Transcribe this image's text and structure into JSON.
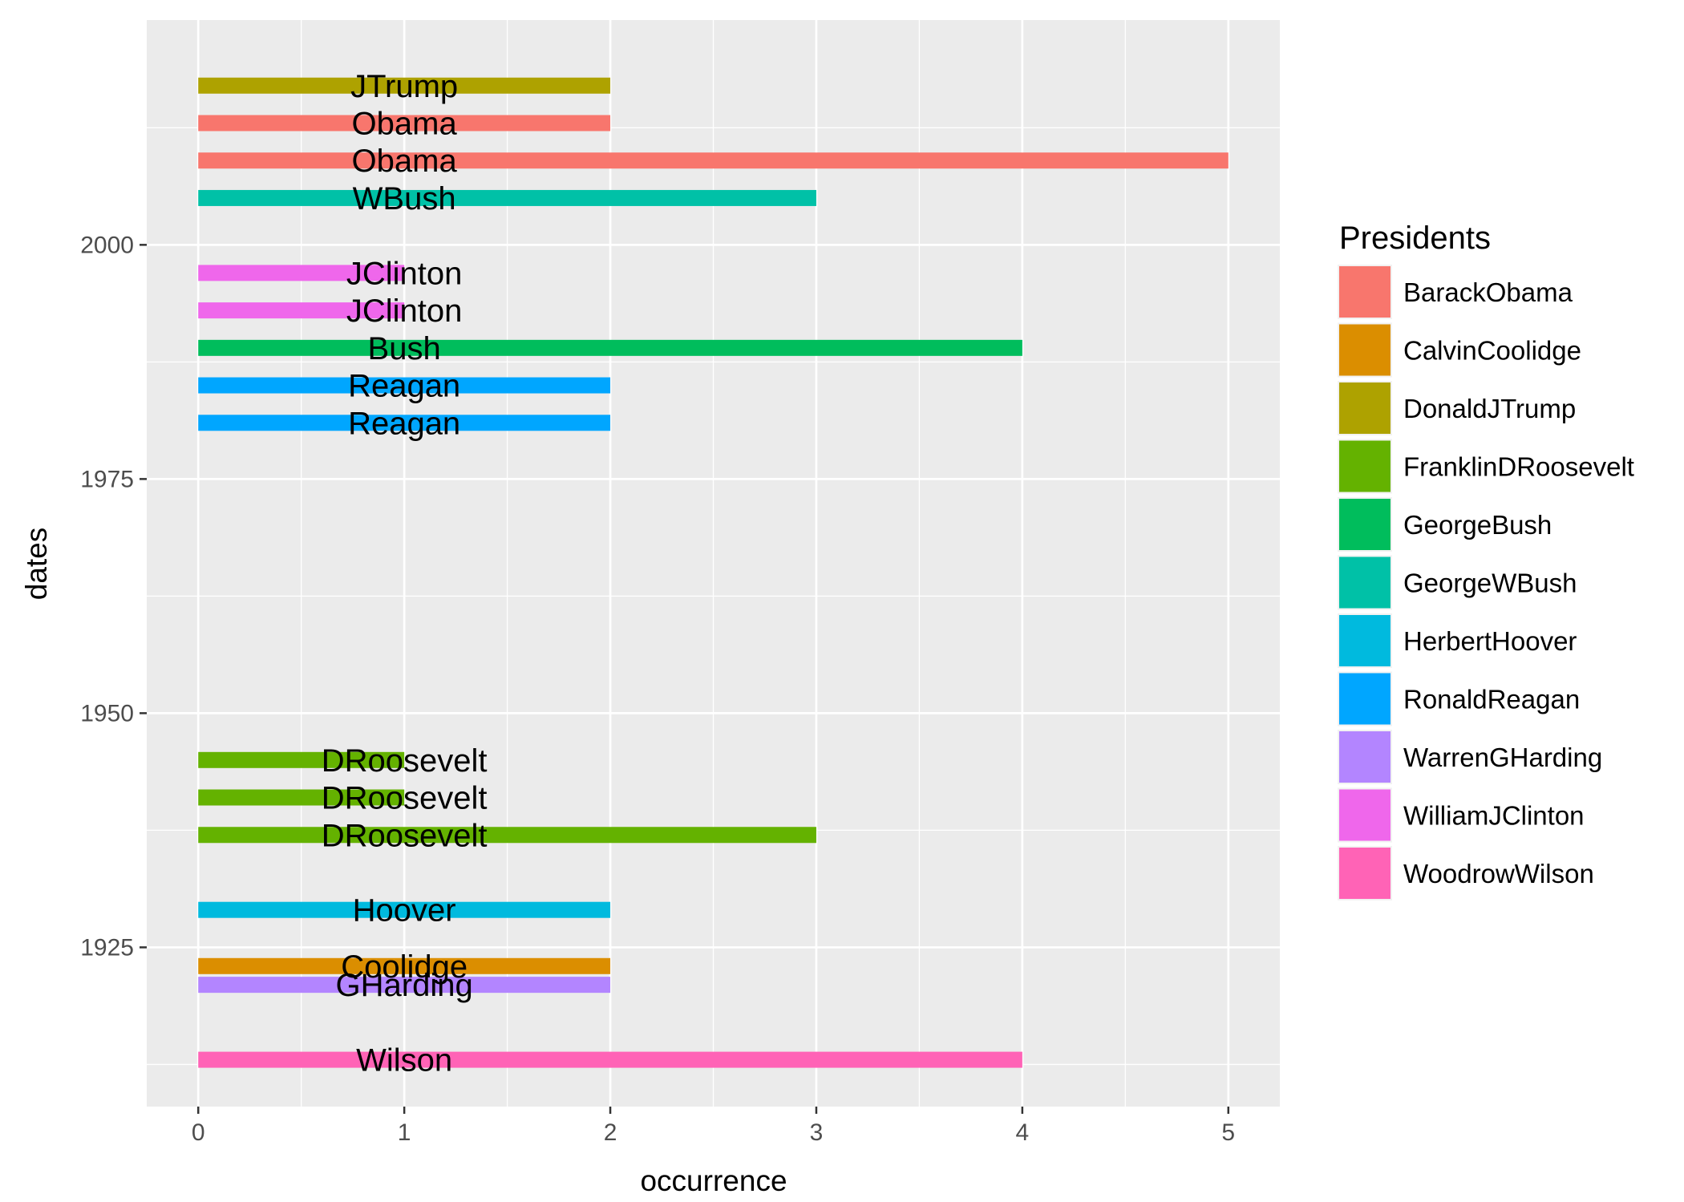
{
  "chart_data": {
    "type": "bar",
    "orientation": "horizontal",
    "xlabel": "occurrence",
    "ylabel": "dates",
    "xlim": [
      -0.25,
      5.25
    ],
    "ylim": [
      1908,
      2024
    ],
    "x_ticks": [
      0,
      1,
      2,
      3,
      4,
      5
    ],
    "y_ticks": [
      1925,
      1950,
      1975,
      2000
    ],
    "grid": true,
    "legend": {
      "title": "Presidents",
      "placement": "right",
      "entries": [
        {
          "name": "BarackObama",
          "color": "#F8766D"
        },
        {
          "name": "CalvinCoolidge",
          "color": "#DB8E00"
        },
        {
          "name": "DonaldJTrump",
          "color": "#AEA200"
        },
        {
          "name": "FranklinDRoosevelt",
          "color": "#64B200"
        },
        {
          "name": "GeorgeBush",
          "color": "#00BD5C"
        },
        {
          "name": "GeorgeWBush",
          "color": "#00C1A7"
        },
        {
          "name": "HerbertHoover",
          "color": "#00BADE"
        },
        {
          "name": "RonaldReagan",
          "color": "#00A6FF"
        },
        {
          "name": "WarrenGHarding",
          "color": "#B385FF"
        },
        {
          "name": "WilliamJClinton",
          "color": "#EF67EB"
        },
        {
          "name": "WoodrowWilson",
          "color": "#FF63B6"
        }
      ]
    },
    "bars": [
      {
        "date": 2017,
        "value": 2,
        "president": "DonaldJTrump",
        "label": "JTrump"
      },
      {
        "date": 2013,
        "value": 2,
        "president": "BarackObama",
        "label": "Obama"
      },
      {
        "date": 2009,
        "value": 5,
        "president": "BarackObama",
        "label": "Obama"
      },
      {
        "date": 2005,
        "value": 3,
        "president": "GeorgeWBush",
        "label": "WBush"
      },
      {
        "date": 1997,
        "value": 1,
        "president": "WilliamJClinton",
        "label": "JClinton"
      },
      {
        "date": 1993,
        "value": 1,
        "president": "WilliamJClinton",
        "label": "JClinton"
      },
      {
        "date": 1989,
        "value": 4,
        "president": "GeorgeBush",
        "label": "Bush"
      },
      {
        "date": 1985,
        "value": 2,
        "president": "RonaldReagan",
        "label": "Reagan"
      },
      {
        "date": 1981,
        "value": 2,
        "president": "RonaldReagan",
        "label": "Reagan"
      },
      {
        "date": 1945,
        "value": 1,
        "president": "FranklinDRoosevelt",
        "label": "DRoosevelt"
      },
      {
        "date": 1941,
        "value": 1,
        "president": "FranklinDRoosevelt",
        "label": "DRoosevelt"
      },
      {
        "date": 1937,
        "value": 3,
        "president": "FranklinDRoosevelt",
        "label": "DRoosevelt"
      },
      {
        "date": 1929,
        "value": 2,
        "president": "HerbertHoover",
        "label": "Hoover"
      },
      {
        "date": 1923,
        "value": 2,
        "president": "CalvinCoolidge",
        "label": "Coolidge"
      },
      {
        "date": 1921,
        "value": 2,
        "president": "WarrenGHarding",
        "label": "GHarding"
      },
      {
        "date": 1913,
        "value": 4,
        "president": "WoodrowWilson",
        "label": "Wilson"
      }
    ]
  }
}
